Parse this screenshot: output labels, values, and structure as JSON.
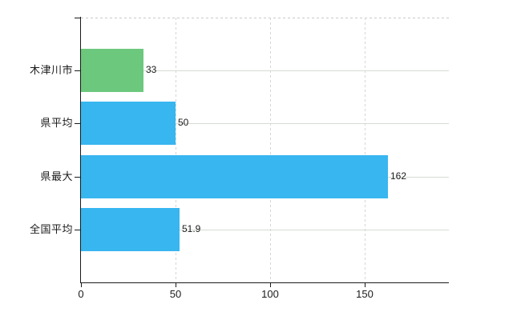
{
  "chart_data": {
    "type": "bar",
    "orientation": "horizontal",
    "title": "",
    "xlabel": "",
    "ylabel": "",
    "categories": [
      "木津川市",
      "県平均",
      "県最大",
      "全国平均"
    ],
    "values": [
      33,
      50,
      162,
      51.9
    ],
    "value_labels": [
      "33",
      "50",
      "162",
      "51.9"
    ],
    "bar_colors": [
      "#6cc87d",
      "#38b6f0",
      "#38b6f0",
      "#38b6f0"
    ],
    "x_ticks": [
      0,
      50,
      100,
      150
    ],
    "x_tick_labels": [
      "0",
      "50",
      "100",
      "150"
    ],
    "xlim": [
      0,
      194.5
    ],
    "grid": true,
    "legend": false,
    "colors": {
      "highlight_bar": "#6cc87d",
      "default_bar": "#38b6f0",
      "axis": "#1a1a1a",
      "grid_horizontal": "#d5dcd4",
      "grid_vertical": "#d6d6d6",
      "top_boundary": "#c9c9c9",
      "text": "#1b1b1b",
      "background": "#ffffff"
    }
  }
}
